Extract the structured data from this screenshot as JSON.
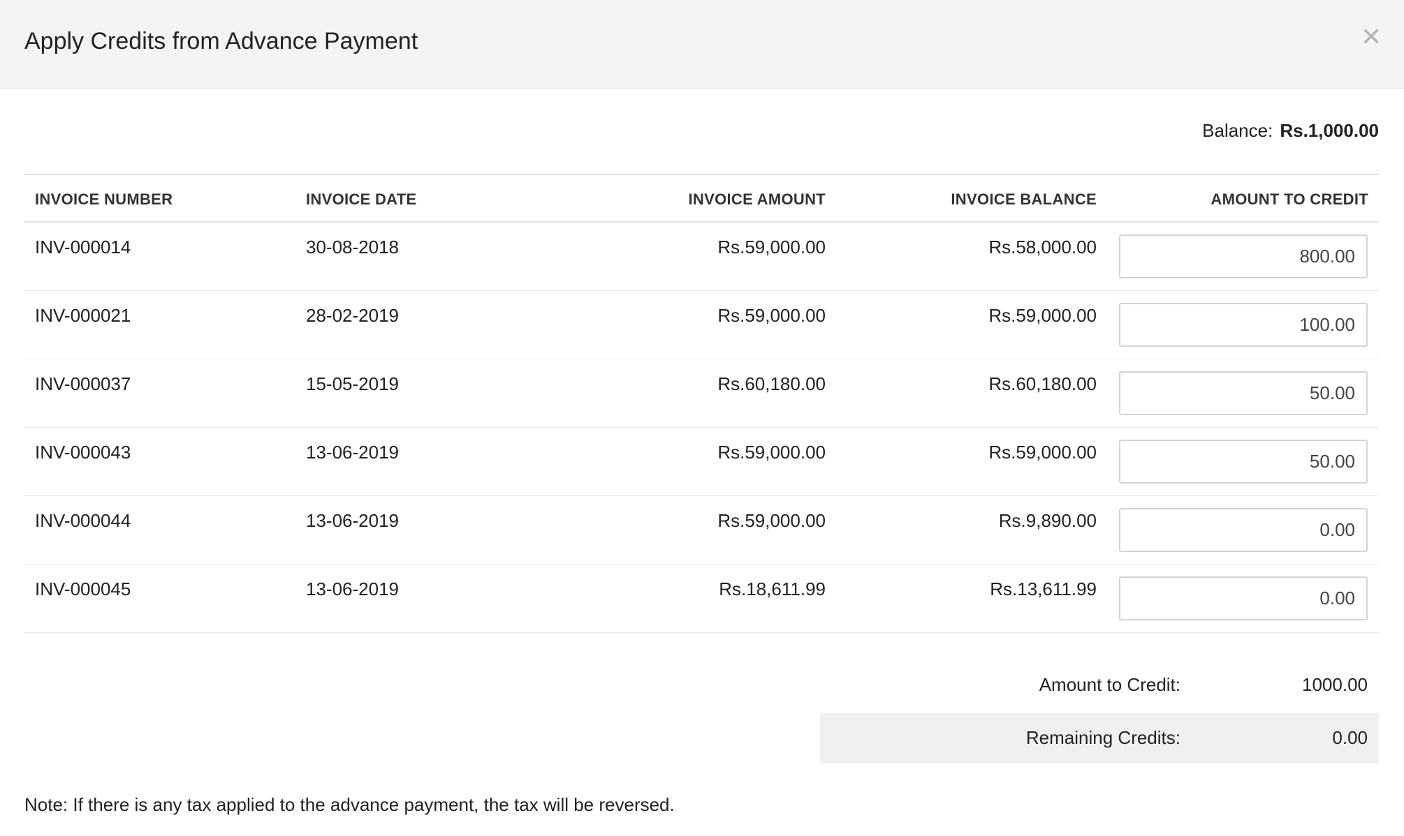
{
  "dialog": {
    "title": "Apply Credits from Advance Payment",
    "close_icon": "close-icon"
  },
  "balance": {
    "label": "Balance:",
    "value": "Rs.1,000.00"
  },
  "table": {
    "headers": [
      "INVOICE NUMBER",
      "INVOICE DATE",
      "INVOICE AMOUNT",
      "INVOICE BALANCE",
      "AMOUNT TO CREDIT"
    ],
    "rows": [
      {
        "number": "INV-000014",
        "date": "30-08-2018",
        "amount": "Rs.59,000.00",
        "balance": "Rs.58,000.00",
        "credit": "800.00"
      },
      {
        "number": "INV-000021",
        "date": "28-02-2019",
        "amount": "Rs.59,000.00",
        "balance": "Rs.59,000.00",
        "credit": "100.00"
      },
      {
        "number": "INV-000037",
        "date": "15-05-2019",
        "amount": "Rs.60,180.00",
        "balance": "Rs.60,180.00",
        "credit": "50.00"
      },
      {
        "number": "INV-000043",
        "date": "13-06-2019",
        "amount": "Rs.59,000.00",
        "balance": "Rs.59,000.00",
        "credit": "50.00"
      },
      {
        "number": "INV-000044",
        "date": "13-06-2019",
        "amount": "Rs.59,000.00",
        "balance": "Rs.9,890.00",
        "credit": "0.00"
      },
      {
        "number": "INV-000045",
        "date": "13-06-2019",
        "amount": "Rs.18,611.99",
        "balance": "Rs.13,611.99",
        "credit": "0.00"
      }
    ]
  },
  "summary": {
    "amount_label": "Amount to Credit:",
    "amount_value": "1000.00",
    "remaining_label": "Remaining Credits:",
    "remaining_value": "0.00"
  },
  "note": "Note: If there is any tax applied to the advance payment, the tax will be reversed."
}
